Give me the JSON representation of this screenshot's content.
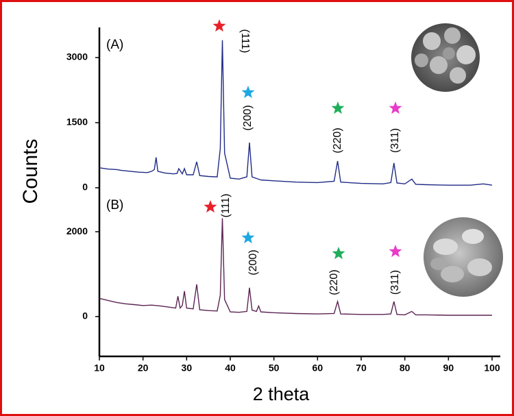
{
  "chart_data": [
    {
      "type": "line",
      "title": "(A)",
      "ylabel": "Counts",
      "x": [
        10,
        12,
        14,
        15,
        17,
        19,
        21,
        22,
        22.6,
        23,
        23.4,
        25,
        27,
        27.8,
        28.2,
        29,
        29.5,
        30,
        31.5,
        32.3,
        33,
        35,
        37,
        37.7,
        38.2,
        38.7,
        40,
        42,
        43.8,
        44.4,
        45,
        47,
        50,
        55,
        60,
        63.8,
        64.6,
        65.3,
        70,
        75,
        76.8,
        77.5,
        78.2,
        80,
        81.6,
        82.5,
        85,
        90,
        95,
        98,
        100
      ],
      "series": [
        {
          "color": "#1f2a86",
          "values": [
            460,
            430,
            420,
            400,
            380,
            360,
            350,
            380,
            420,
            700,
            380,
            340,
            320,
            330,
            440,
            320,
            440,
            300,
            300,
            600,
            280,
            260,
            250,
            900,
            3400,
            800,
            220,
            200,
            250,
            1040,
            250,
            180,
            160,
            130,
            120,
            150,
            615,
            130,
            100,
            90,
            120,
            570,
            110,
            90,
            200,
            80,
            70,
            60,
            60,
            90,
            60
          ]
        }
      ],
      "xlim": [
        10,
        100
      ],
      "ylim": [
        -100,
        3600
      ],
      "yticks": [
        0,
        1500,
        3000
      ],
      "annotations": [
        {
          "label": "(111)",
          "color": "#e8202a"
        },
        {
          "label": "(200)",
          "color": "#1fa8e0"
        },
        {
          "label": "(220)",
          "color": "#1fae5a"
        },
        {
          "label": "(311)",
          "color": "#e83cc8"
        }
      ]
    },
    {
      "type": "line",
      "title": "(B)",
      "xlabel": "2 theta",
      "x": [
        10,
        12,
        14,
        16,
        18,
        20,
        22,
        24,
        26,
        27.5,
        28,
        28.5,
        29,
        29.5,
        30,
        31.5,
        32.3,
        33,
        35,
        37,
        37.7,
        38.2,
        38.7,
        40,
        42,
        43.8,
        44.4,
        45,
        46,
        46.5,
        47,
        50,
        55,
        60,
        63.8,
        64.6,
        65.3,
        70,
        75,
        76.8,
        77.5,
        78.2,
        80,
        81.6,
        82.5,
        85,
        90,
        95,
        100
      ],
      "series": [
        {
          "color": "#5a2352",
          "values": [
            430,
            380,
            330,
            300,
            280,
            260,
            270,
            250,
            220,
            200,
            480,
            200,
            260,
            600,
            200,
            180,
            760,
            160,
            140,
            130,
            500,
            2320,
            400,
            110,
            100,
            120,
            680,
            150,
            120,
            250,
            110,
            90,
            70,
            60,
            70,
            355,
            60,
            50,
            50,
            60,
            355,
            50,
            40,
            120,
            40,
            40,
            30,
            30,
            30
          ]
        }
      ],
      "xlim": [
        10,
        100
      ],
      "xticks": [
        10,
        20,
        30,
        40,
        50,
        60,
        70,
        80,
        90,
        100
      ],
      "ylim": [
        -940,
        2940
      ],
      "yticks": [
        0,
        2000
      ],
      "annotations": [
        {
          "label": "(111)",
          "color": "#e8202a"
        },
        {
          "label": "(200)",
          "color": "#1fa8e0"
        },
        {
          "label": "(220)",
          "color": "#1fae5a"
        },
        {
          "label": "(311)",
          "color": "#e83cc8"
        }
      ]
    }
  ]
}
